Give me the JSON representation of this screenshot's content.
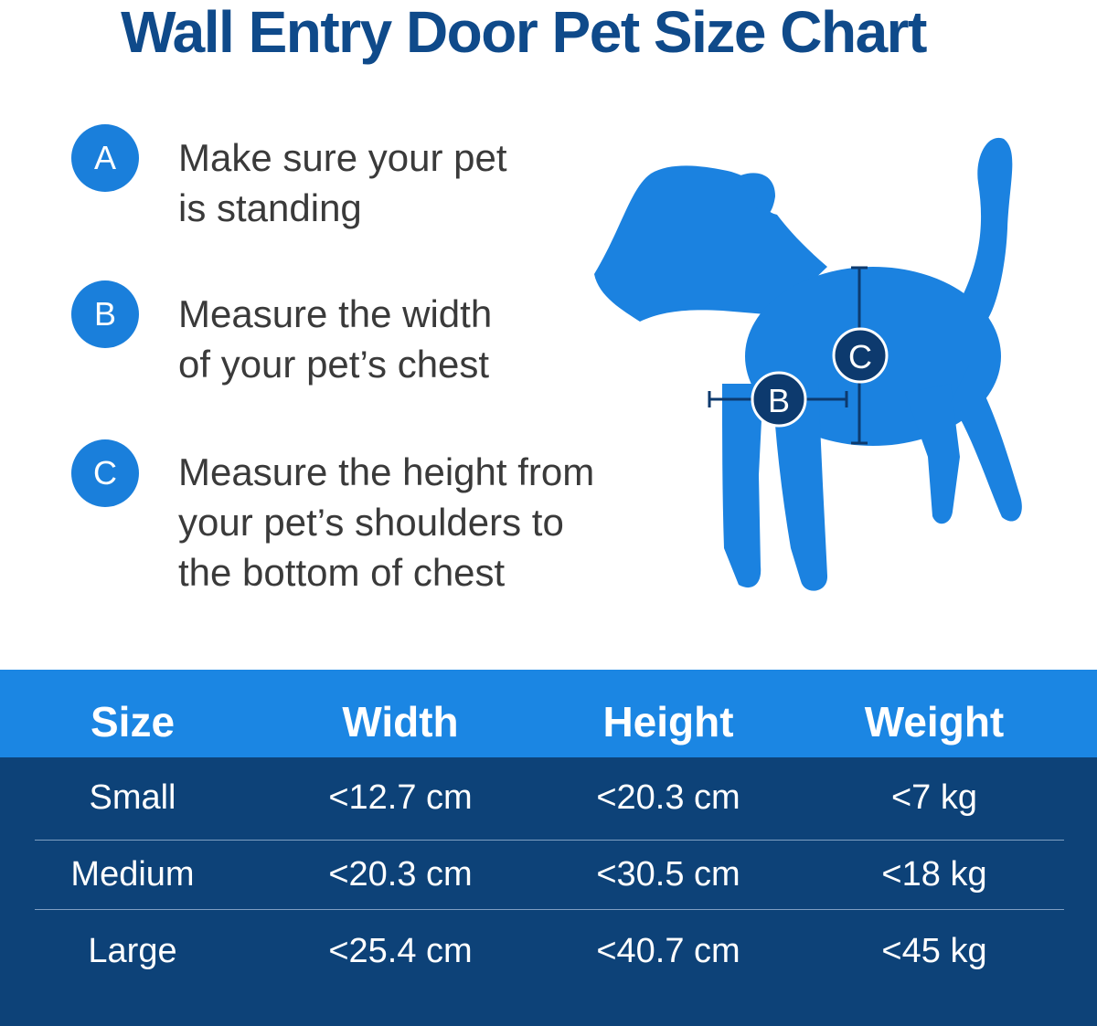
{
  "title": "Wall Entry Door Pet Size Chart",
  "colors": {
    "title": "#0f4a8a",
    "badge": "#1a7fdb",
    "dog": "#1b82e0",
    "table_header": "#1b86e3",
    "table_body": "#0d4278"
  },
  "steps": [
    {
      "letter": "A",
      "line1": "Make sure your pet",
      "line2": "is standing",
      "line3": ""
    },
    {
      "letter": "B",
      "line1": "Measure the width",
      "line2": "of your pet’s chest",
      "line3": ""
    },
    {
      "letter": "C",
      "line1": "Measure the height from",
      "line2": "your pet’s shoulders to",
      "line3": "the bottom of chest"
    }
  ],
  "diagram": {
    "width_marker": "B",
    "height_marker": "C"
  },
  "table": {
    "headers": [
      "Size",
      "Width",
      "Height",
      "Weight"
    ],
    "rows": [
      [
        "Small",
        "<12.7 cm",
        "<20.3 cm",
        "<7 kg"
      ],
      [
        "Medium",
        "<20.3 cm",
        "<30.5 cm",
        "<18 kg"
      ],
      [
        "Large",
        "<25.4 cm",
        "<40.7 cm",
        "<45 kg"
      ]
    ]
  }
}
